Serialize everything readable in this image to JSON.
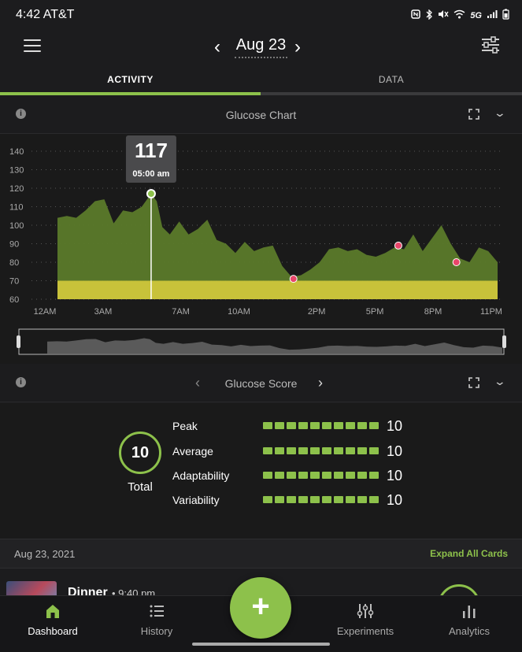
{
  "status_bar": {
    "time": "4:42 AT&T",
    "icons": [
      "nfc-icon",
      "bluetooth-icon",
      "mute-icon",
      "wifi-icon",
      "5g-icon",
      "signal-icon",
      "battery-icon"
    ],
    "network_label": "5G"
  },
  "header": {
    "date_label": "Aug 23"
  },
  "tabs": [
    {
      "label": "ACTIVITY",
      "active": true
    },
    {
      "label": "DATA",
      "active": false
    }
  ],
  "glucose_chart": {
    "title": "Glucose Chart",
    "tooltip_value": "117",
    "tooltip_time": "05:00 am"
  },
  "chart_data": {
    "type": "area",
    "title": "Glucose Chart",
    "xlabel": "",
    "ylabel": "",
    "x_ticks": [
      "12AM",
      "3AM",
      "7AM",
      "10AM",
      "2PM",
      "5PM",
      "8PM",
      "11PM"
    ],
    "y_ticks": [
      60,
      70,
      80,
      90,
      100,
      110,
      120,
      130,
      140
    ],
    "ylim": [
      60,
      140
    ],
    "grid": true,
    "target_band": [
      60,
      70
    ],
    "x_hours": [
      0,
      0.5,
      1,
      1.5,
      2,
      2.5,
      3,
      3.5,
      4,
      4.5,
      5,
      5.3,
      5.6,
      6,
      6.5,
      7,
      7.5,
      8,
      8.5,
      9,
      9.5,
      10,
      10.5,
      11,
      11.5,
      12,
      12.5,
      13,
      13.5,
      14,
      14.5,
      15,
      15.5,
      16,
      16.5,
      17,
      17.5,
      18,
      18.5,
      19,
      19.5,
      20,
      20.5,
      21,
      21.5,
      22,
      22.5,
      23,
      23.5
    ],
    "y_values": [
      104,
      105,
      104,
      108,
      113,
      114,
      101,
      108,
      107,
      110,
      117,
      113,
      99,
      95,
      102,
      95,
      98,
      103,
      92,
      90,
      85,
      91,
      86,
      88,
      89,
      78,
      72,
      73,
      76,
      80,
      87,
      88,
      86,
      87,
      84,
      83,
      85,
      88,
      87,
      95,
      86,
      93,
      100,
      90,
      82,
      80,
      88,
      86,
      80
    ],
    "highlight_points": [
      {
        "x": 5,
        "y": 117
      }
    ],
    "low_points": [
      {
        "x": 12.6,
        "y": 71
      },
      {
        "x": 18.2,
        "y": 89
      },
      {
        "x": 21.3,
        "y": 80
      }
    ]
  },
  "glucose_score": {
    "title": "Glucose Score",
    "total_value": "10",
    "total_label": "Total",
    "metrics": [
      {
        "label": "Peak",
        "value": "10",
        "score": 10
      },
      {
        "label": "Average",
        "value": "10",
        "score": 10
      },
      {
        "label": "Adaptability",
        "value": "10",
        "score": 10
      },
      {
        "label": "Variability",
        "value": "10",
        "score": 10
      }
    ]
  },
  "day_row": {
    "date": "Aug 23, 2021",
    "expand_all": "Expand All Cards"
  },
  "meal_card": {
    "name": "Dinner",
    "time": "• 9:40 pm"
  },
  "bottom_nav": {
    "items": [
      {
        "label": "Dashboard",
        "icon": "home-icon",
        "active": true
      },
      {
        "label": "History",
        "icon": "list-icon",
        "active": false
      },
      {
        "label": "Experiments",
        "icon": "sliders-icon",
        "active": false
      },
      {
        "label": "Analytics",
        "icon": "bar-chart-icon",
        "active": false
      }
    ],
    "fab_symbol": "+"
  },
  "colors": {
    "accent": "#8dc14b",
    "band": "#c8c23a",
    "area": "#5b7a2a",
    "low_point": "#e8466a",
    "background": "#1c1c1e"
  }
}
